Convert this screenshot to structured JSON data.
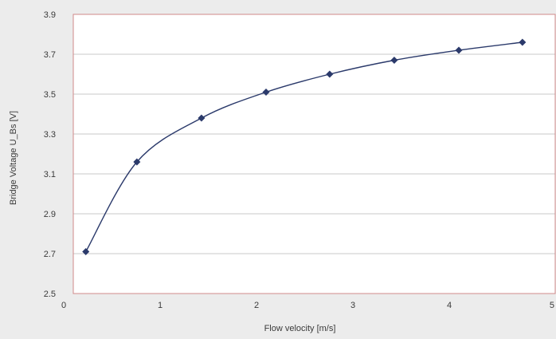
{
  "chart_data": {
    "type": "scatter",
    "xlabel": "Flow velocity [m/s]",
    "ylabel": "Bridge Voltage U_Bs [V]",
    "xlim": [
      0,
      5
    ],
    "ylim": [
      2.5,
      3.9
    ],
    "xticks": [
      0,
      1,
      2,
      3,
      4,
      5
    ],
    "yticks": [
      2.5,
      2.7,
      2.9,
      3.1,
      3.3,
      3.5,
      3.7,
      3.9
    ],
    "xtick_labels": [
      "0",
      "1",
      "2",
      "3",
      "4",
      "5"
    ],
    "ytick_labels": [
      "2.5",
      "2.7",
      "2.9",
      "3.1",
      "3.3",
      "3.5",
      "3.7",
      "3.9"
    ],
    "grid": "horizontal",
    "legend": "none",
    "marker": "diamond",
    "trendline": "smooth",
    "series": [
      {
        "x": [
          0.13,
          0.66,
          1.33,
          2.0,
          2.66,
          3.33,
          4.0,
          4.66
        ],
        "y": [
          2.71,
          3.16,
          3.38,
          3.51,
          3.6,
          3.67,
          3.72,
          3.76
        ]
      }
    ],
    "colors": {
      "plot_background": "#ffffff",
      "page_background": "#ececec",
      "grid": "#c8c8c8",
      "plot_border": "#d08a8a",
      "series": "#2b3a6b",
      "text": "#3a3a3a"
    }
  }
}
